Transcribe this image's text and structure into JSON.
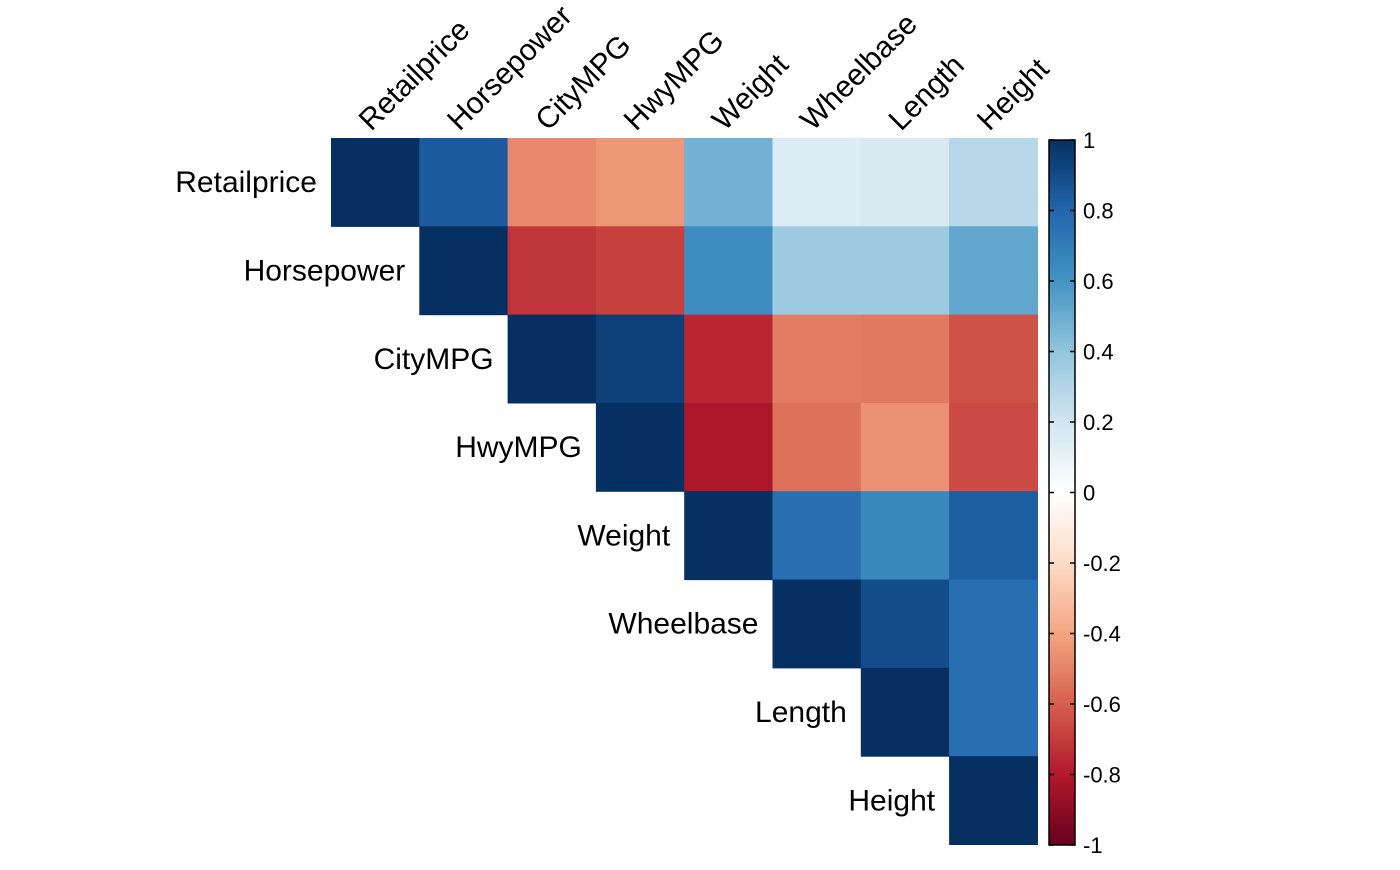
{
  "chart_data": {
    "type": "heatmap",
    "title": "",
    "variables": [
      "Retailprice",
      "Horsepower",
      "CityMPG",
      "HwyMPG",
      "Weight",
      "Wheelbase",
      "Length",
      "Height"
    ],
    "layout": "upper-triangle",
    "matrix": [
      [
        1.0,
        0.84,
        -0.48,
        -0.44,
        0.48,
        0.15,
        0.17,
        0.29
      ],
      [
        0.84,
        1.0,
        -0.72,
        -0.69,
        0.63,
        0.36,
        0.36,
        0.52
      ],
      [
        -0.48,
        -0.72,
        1.0,
        0.94,
        -0.76,
        -0.52,
        -0.53,
        -0.64
      ],
      [
        -0.44,
        -0.69,
        0.94,
        1.0,
        -0.82,
        -0.55,
        -0.46,
        -0.66
      ],
      [
        0.48,
        0.63,
        -0.76,
        -0.82,
        1.0,
        0.76,
        0.65,
        0.83
      ],
      [
        0.15,
        0.36,
        -0.52,
        -0.55,
        0.76,
        1.0,
        0.89,
        0.76
      ],
      [
        0.17,
        0.36,
        -0.53,
        -0.46,
        0.65,
        0.89,
        1.0,
        0.76
      ],
      [
        0.29,
        0.52,
        -0.64,
        -0.66,
        0.83,
        0.76,
        0.76,
        1.0
      ]
    ],
    "colorbar": {
      "range": [
        -1,
        1
      ],
      "ticks": [
        1,
        0.8,
        0.6,
        0.4,
        0.2,
        0,
        -0.2,
        -0.4,
        -0.6,
        -0.8,
        -1
      ],
      "tick_labels": [
        "1",
        "0.8",
        "0.6",
        "0.4",
        "0.2",
        "0",
        "-0.2",
        "-0.4",
        "-0.6",
        "-0.8",
        "-1"
      ],
      "placement": "right",
      "palette": [
        "#67001F",
        "#B2182B",
        "#D6604D",
        "#F4A582",
        "#FDDBC7",
        "#FFFFFF",
        "#D1E5F0",
        "#92C5DE",
        "#4393C3",
        "#2166AC",
        "#053061"
      ]
    }
  }
}
